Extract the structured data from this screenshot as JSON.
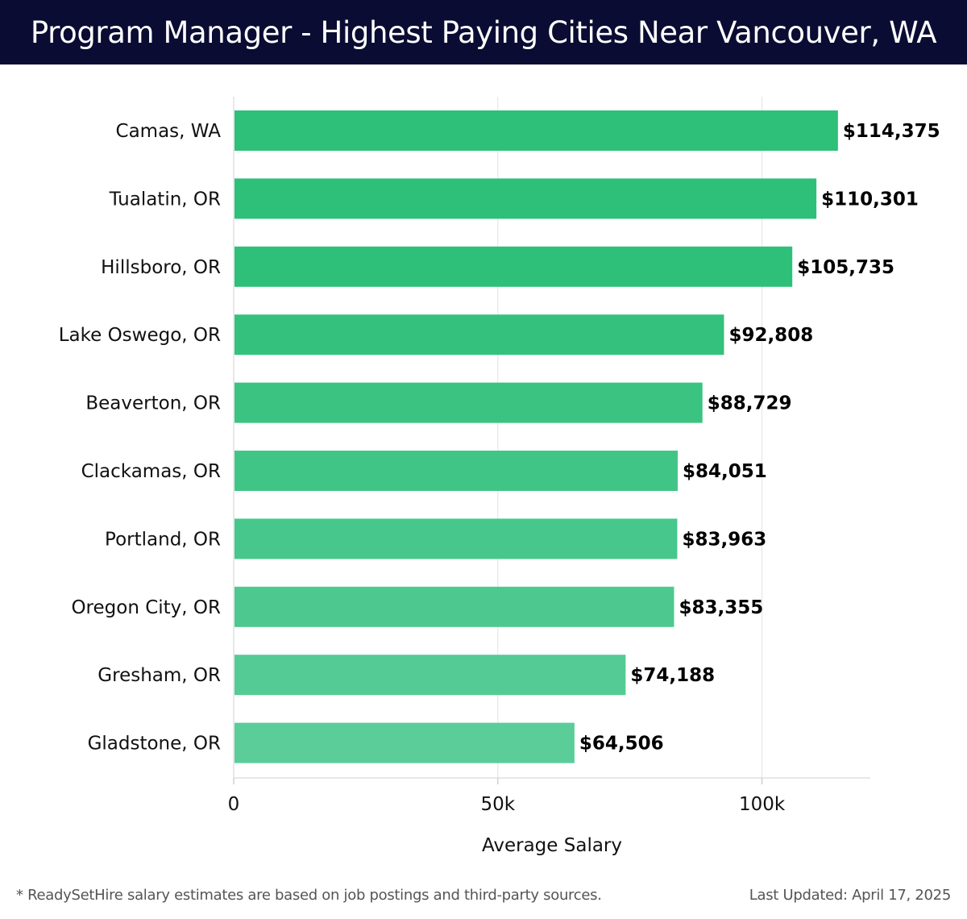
{
  "header": {
    "title": "Program Manager - Highest Paying Cities Near Vancouver, WA"
  },
  "colors": {
    "header_bg": "#0a0c33",
    "bar_dark": "#2ebf79",
    "bar_light": "#5acd98",
    "grid": "#e2e2e2"
  },
  "chart_data": {
    "type": "bar",
    "orientation": "horizontal",
    "title": "Program Manager - Highest Paying Cities Near Vancouver, WA",
    "categories": [
      "Camas, WA",
      "Tualatin, OR",
      "Hillsboro, OR",
      "Lake Oswego, OR",
      "Beaverton, OR",
      "Clackamas, OR",
      "Portland, OR",
      "Oregon City, OR",
      "Gresham, OR",
      "Gladstone, OR"
    ],
    "values": [
      114375,
      110301,
      105735,
      92808,
      88729,
      84051,
      83963,
      83355,
      74188,
      64506
    ],
    "value_labels": [
      "$114,375",
      "$110,301",
      "$105,735",
      "$92,808",
      "$88,729",
      "$84,051",
      "$83,963",
      "$83,355",
      "$74,188",
      "$64,506"
    ],
    "xlabel": "Average Salary",
    "ylabel": "",
    "xlim": [
      0,
      120500
    ],
    "xticks": [
      0,
      50000,
      100000
    ],
    "xtick_labels": [
      "0",
      "50k",
      "100k"
    ],
    "grid": true
  },
  "footer": {
    "note": "* ReadySetHire salary estimates are based on job postings and third-party sources.",
    "updated": "Last Updated: April 17, 2025"
  }
}
